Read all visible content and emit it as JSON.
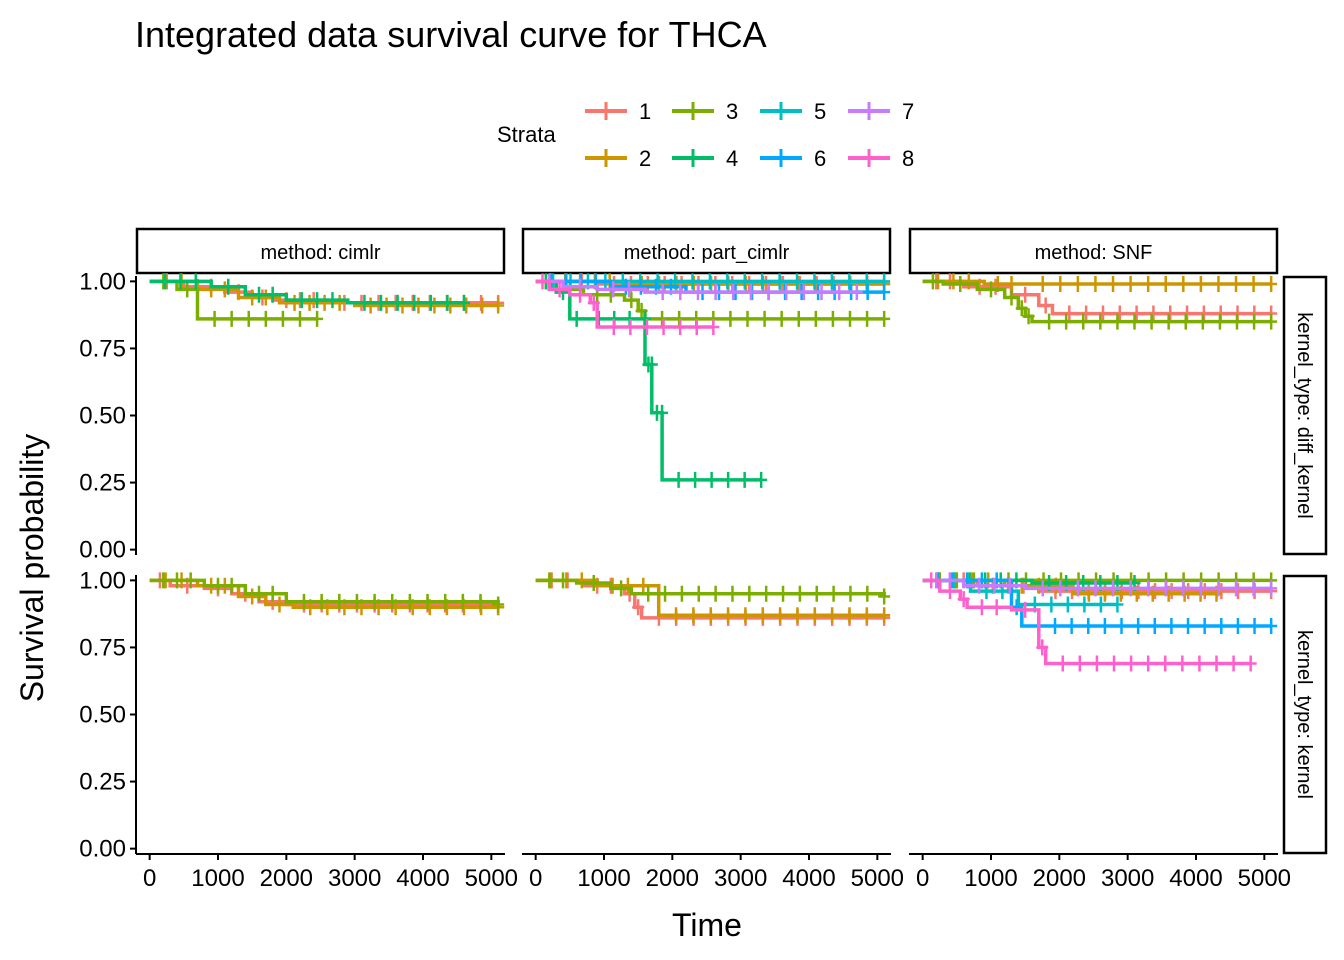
{
  "chart_data": {
    "type": "line",
    "title": "Integrated data survival curve for THCA",
    "xlabel": "Time",
    "ylabel": "Survival probability",
    "legend": {
      "title": "Strata",
      "placement": "top",
      "entries": [
        {
          "label": "1",
          "color": "#F8766D"
        },
        {
          "label": "2",
          "color": "#CD9600"
        },
        {
          "label": "3",
          "color": "#7CAE00"
        },
        {
          "label": "4",
          "color": "#00BE67"
        },
        {
          "label": "5",
          "color": "#00BFC4"
        },
        {
          "label": "6",
          "color": "#00A9FF"
        },
        {
          "label": "7",
          "color": "#C77CFF"
        },
        {
          "label": "8",
          "color": "#FF61CC"
        }
      ]
    },
    "xlim": [
      -200,
      5200
    ],
    "ylim": [
      -0.02,
      1.02
    ],
    "x_ticks": [
      0,
      1000,
      2000,
      3000,
      4000,
      5000
    ],
    "x_tick_labels": [
      "0",
      "1000",
      "2000",
      "3000",
      "4000",
      "5000"
    ],
    "y_ticks": [
      0,
      0.25,
      0.5,
      0.75,
      1.0
    ],
    "y_tick_labels": [
      "0.00",
      "0.25",
      "0.50",
      "0.75",
      "1.00"
    ],
    "col_strips": [
      "method: cimlr",
      "method: part_cimlr",
      "method: SNF"
    ],
    "row_strips": [
      "kernel_type: diff_kernel",
      "kernel_type: kernel"
    ],
    "grid": false,
    "panels": [
      {
        "row": 0,
        "col": 0,
        "series": [
          {
            "strata": "1",
            "steps": [
              [
                0,
                1
              ],
              [
                500,
                0.98
              ],
              [
                1100,
                0.96
              ],
              [
                1500,
                0.94
              ],
              [
                1800,
                0.93
              ],
              [
                2600,
                0.92
              ],
              [
                5100,
                0.92
              ]
            ]
          },
          {
            "strata": "2",
            "steps": [
              [
                0,
                1
              ],
              [
                700,
                0.97
              ],
              [
                1300,
                0.94
              ],
              [
                1900,
                0.92
              ],
              [
                3000,
                0.91
              ],
              [
                5100,
                0.91
              ]
            ]
          },
          {
            "strata": "3",
            "steps": [
              [
                0,
                1
              ],
              [
                400,
                0.97
              ],
              [
                700,
                0.86
              ],
              [
                2450,
                0.86
              ]
            ]
          },
          {
            "strata": "4",
            "steps": [
              [
                0,
                1
              ],
              [
                900,
                0.98
              ],
              [
                1400,
                0.95
              ],
              [
                2000,
                0.93
              ],
              [
                2900,
                0.92
              ],
              [
                4600,
                0.92
              ]
            ]
          }
        ]
      },
      {
        "row": 0,
        "col": 1,
        "series": [
          {
            "strata": "1",
            "steps": [
              [
                0,
                1
              ],
              [
                900,
                0.99
              ],
              [
                5100,
                0.99
              ]
            ]
          },
          {
            "strata": "2",
            "steps": [
              [
                0,
                1
              ],
              [
                1300,
                0.99
              ],
              [
                5100,
                0.99
              ]
            ]
          },
          {
            "strata": "3",
            "steps": [
              [
                0,
                1
              ],
              [
                300,
                0.97
              ],
              [
                700,
                0.95
              ],
              [
                1300,
                0.93
              ],
              [
                1500,
                0.89
              ],
              [
                1600,
                0.86
              ],
              [
                5100,
                0.86
              ]
            ]
          },
          {
            "strata": "4",
            "steps": [
              [
                0,
                1
              ],
              [
                300,
                0.96
              ],
              [
                500,
                0.86
              ],
              [
                700,
                0.86
              ],
              [
                1600,
                0.86
              ],
              [
                1600,
                0.69
              ],
              [
                1700,
                0.69
              ],
              [
                1700,
                0.51
              ],
              [
                1850,
                0.51
              ],
              [
                1850,
                0.26
              ],
              [
                3300,
                0.26
              ]
            ]
          },
          {
            "strata": "5",
            "steps": [
              [
                0,
                1
              ],
              [
                5100,
                1
              ]
            ]
          },
          {
            "strata": "6",
            "steps": [
              [
                0,
                1
              ],
              [
                1100,
                0.98
              ],
              [
                2200,
                0.96
              ],
              [
                5100,
                0.96
              ]
            ]
          },
          {
            "strata": "7",
            "steps": [
              [
                0,
                1
              ],
              [
                400,
                0.98
              ],
              [
                900,
                0.97
              ],
              [
                1600,
                0.96
              ],
              [
                4700,
                0.96
              ]
            ]
          },
          {
            "strata": "8",
            "steps": [
              [
                0,
                1
              ],
              [
                200,
                0.97
              ],
              [
                500,
                0.95
              ],
              [
                800,
                0.92
              ],
              [
                900,
                0.83
              ],
              [
                2600,
                0.83
              ]
            ]
          }
        ]
      },
      {
        "row": 0,
        "col": 2,
        "series": [
          {
            "strata": "1",
            "steps": [
              [
                0,
                1
              ],
              [
                600,
                0.98
              ],
              [
                1300,
                0.95
              ],
              [
                1700,
                0.91
              ],
              [
                1900,
                0.88
              ],
              [
                5100,
                0.88
              ]
            ]
          },
          {
            "strata": "2",
            "steps": [
              [
                0,
                1
              ],
              [
                900,
                0.99
              ],
              [
                1500,
                0.99
              ],
              [
                5100,
                0.99
              ]
            ]
          },
          {
            "strata": "3",
            "steps": [
              [
                0,
                1
              ],
              [
                300,
                0.99
              ],
              [
                800,
                0.97
              ],
              [
                1200,
                0.94
              ],
              [
                1400,
                0.9
              ],
              [
                1500,
                0.87
              ],
              [
                1600,
                0.85
              ],
              [
                5100,
                0.85
              ]
            ]
          }
        ]
      },
      {
        "row": 1,
        "col": 0,
        "series": [
          {
            "strata": "1",
            "steps": [
              [
                0,
                1
              ],
              [
                300,
                0.98
              ],
              [
                800,
                0.97
              ],
              [
                1200,
                0.95
              ],
              [
                1600,
                0.92
              ],
              [
                2000,
                0.91
              ],
              [
                5100,
                0.9
              ]
            ]
          },
          {
            "strata": "2",
            "steps": [
              [
                0,
                1
              ],
              [
                700,
                0.98
              ],
              [
                1300,
                0.94
              ],
              [
                1700,
                0.91
              ],
              [
                2100,
                0.9
              ],
              [
                5100,
                0.9
              ]
            ]
          },
          {
            "strata": "3",
            "steps": [
              [
                0,
                1
              ],
              [
                800,
                0.98
              ],
              [
                1400,
                0.95
              ],
              [
                2000,
                0.92
              ],
              [
                5100,
                0.91
              ]
            ]
          }
        ]
      },
      {
        "row": 1,
        "col": 1,
        "series": [
          {
            "strata": "1",
            "steps": [
              [
                0,
                1
              ],
              [
                700,
                0.98
              ],
              [
                1300,
                0.95
              ],
              [
                1450,
                0.9
              ],
              [
                1550,
                0.86
              ],
              [
                5100,
                0.86
              ]
            ]
          },
          {
            "strata": "2",
            "steps": [
              [
                0,
                1
              ],
              [
                900,
                0.98
              ],
              [
                1800,
                0.87
              ],
              [
                5100,
                0.87
              ]
            ]
          },
          {
            "strata": "3",
            "steps": [
              [
                0,
                1
              ],
              [
                600,
                0.99
              ],
              [
                1100,
                0.97
              ],
              [
                1400,
                0.95
              ],
              [
                5100,
                0.94
              ]
            ]
          }
        ]
      },
      {
        "row": 1,
        "col": 2,
        "series": [
          {
            "strata": "1",
            "steps": [
              [
                0,
                1
              ],
              [
                800,
                0.98
              ],
              [
                1700,
                0.96
              ],
              [
                5100,
                0.96
              ]
            ]
          },
          {
            "strata": "2",
            "steps": [
              [
                0,
                1
              ],
              [
                1200,
                0.98
              ],
              [
                2200,
                0.95
              ],
              [
                4300,
                0.95
              ]
            ]
          },
          {
            "strata": "3",
            "steps": [
              [
                0,
                1
              ],
              [
                1000,
                1
              ],
              [
                5100,
                1
              ]
            ]
          },
          {
            "strata": "4",
            "steps": [
              [
                0,
                1
              ],
              [
                1600,
                0.99
              ],
              [
                3100,
                0.99
              ]
            ]
          },
          {
            "strata": "5",
            "steps": [
              [
                0,
                1
              ],
              [
                700,
                0.96
              ],
              [
                1400,
                0.91
              ],
              [
                2850,
                0.91
              ]
            ]
          },
          {
            "strata": "6",
            "steps": [
              [
                0,
                1
              ],
              [
                1300,
                0.9
              ],
              [
                1450,
                0.83
              ],
              [
                5100,
                0.83
              ]
            ]
          },
          {
            "strata": "7",
            "steps": [
              [
                0,
                1
              ],
              [
                600,
                0.98
              ],
              [
                1500,
                0.97
              ],
              [
                5100,
                0.97
              ]
            ]
          },
          {
            "strata": "8",
            "steps": [
              [
                0,
                1
              ],
              [
                250,
                0.96
              ],
              [
                550,
                0.93
              ],
              [
                650,
                0.9
              ],
              [
                1300,
                0.89
              ],
              [
                1700,
                0.75
              ],
              [
                1800,
                0.69
              ],
              [
                4800,
                0.69
              ]
            ]
          }
        ]
      }
    ]
  }
}
